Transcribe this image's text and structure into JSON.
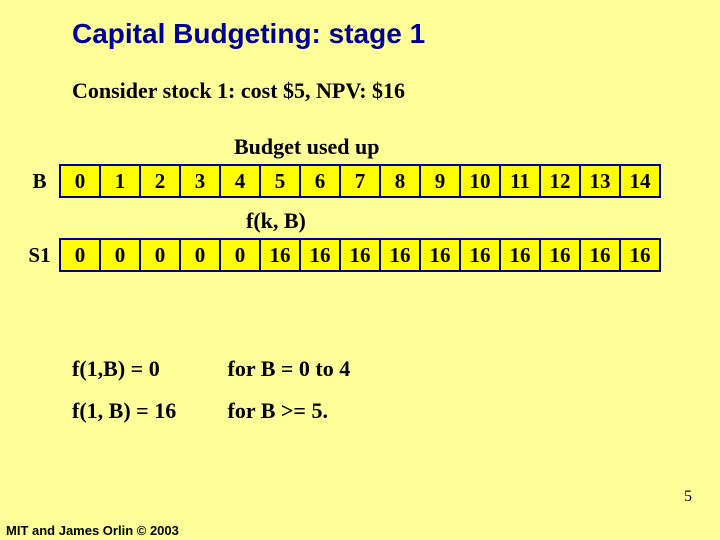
{
  "title": "Capital Budgeting: stage 1",
  "subtitle": "Consider stock 1:   cost $5,   NPV:  $16",
  "table1": {
    "caption": "Budget used up",
    "rowHeader": "B",
    "cells": [
      "0",
      "1",
      "2",
      "3",
      "4",
      "5",
      "6",
      "7",
      "8",
      "9",
      "10",
      "11",
      "12",
      "13",
      "14"
    ]
  },
  "table2": {
    "caption": "f(k, B)",
    "rowHeader": "S1",
    "cells": [
      "0",
      "0",
      "0",
      "0",
      "0",
      "16",
      "16",
      "16",
      "16",
      "16",
      "16",
      "16",
      "16",
      "16",
      "16"
    ]
  },
  "notes": [
    {
      "lhs": "f(1,B) = 0",
      "rhs": "for B = 0 to 4"
    },
    {
      "lhs": "f(1, B) = 16",
      "rhs": "for B >= 5."
    }
  ],
  "slideNumber": "5",
  "copyright": "MIT and James Orlin © 2003",
  "colors": {
    "pageBg": "#ffff99",
    "title": "#000099",
    "cellBg": "#ffff00",
    "cellBorder": "#000099"
  }
}
